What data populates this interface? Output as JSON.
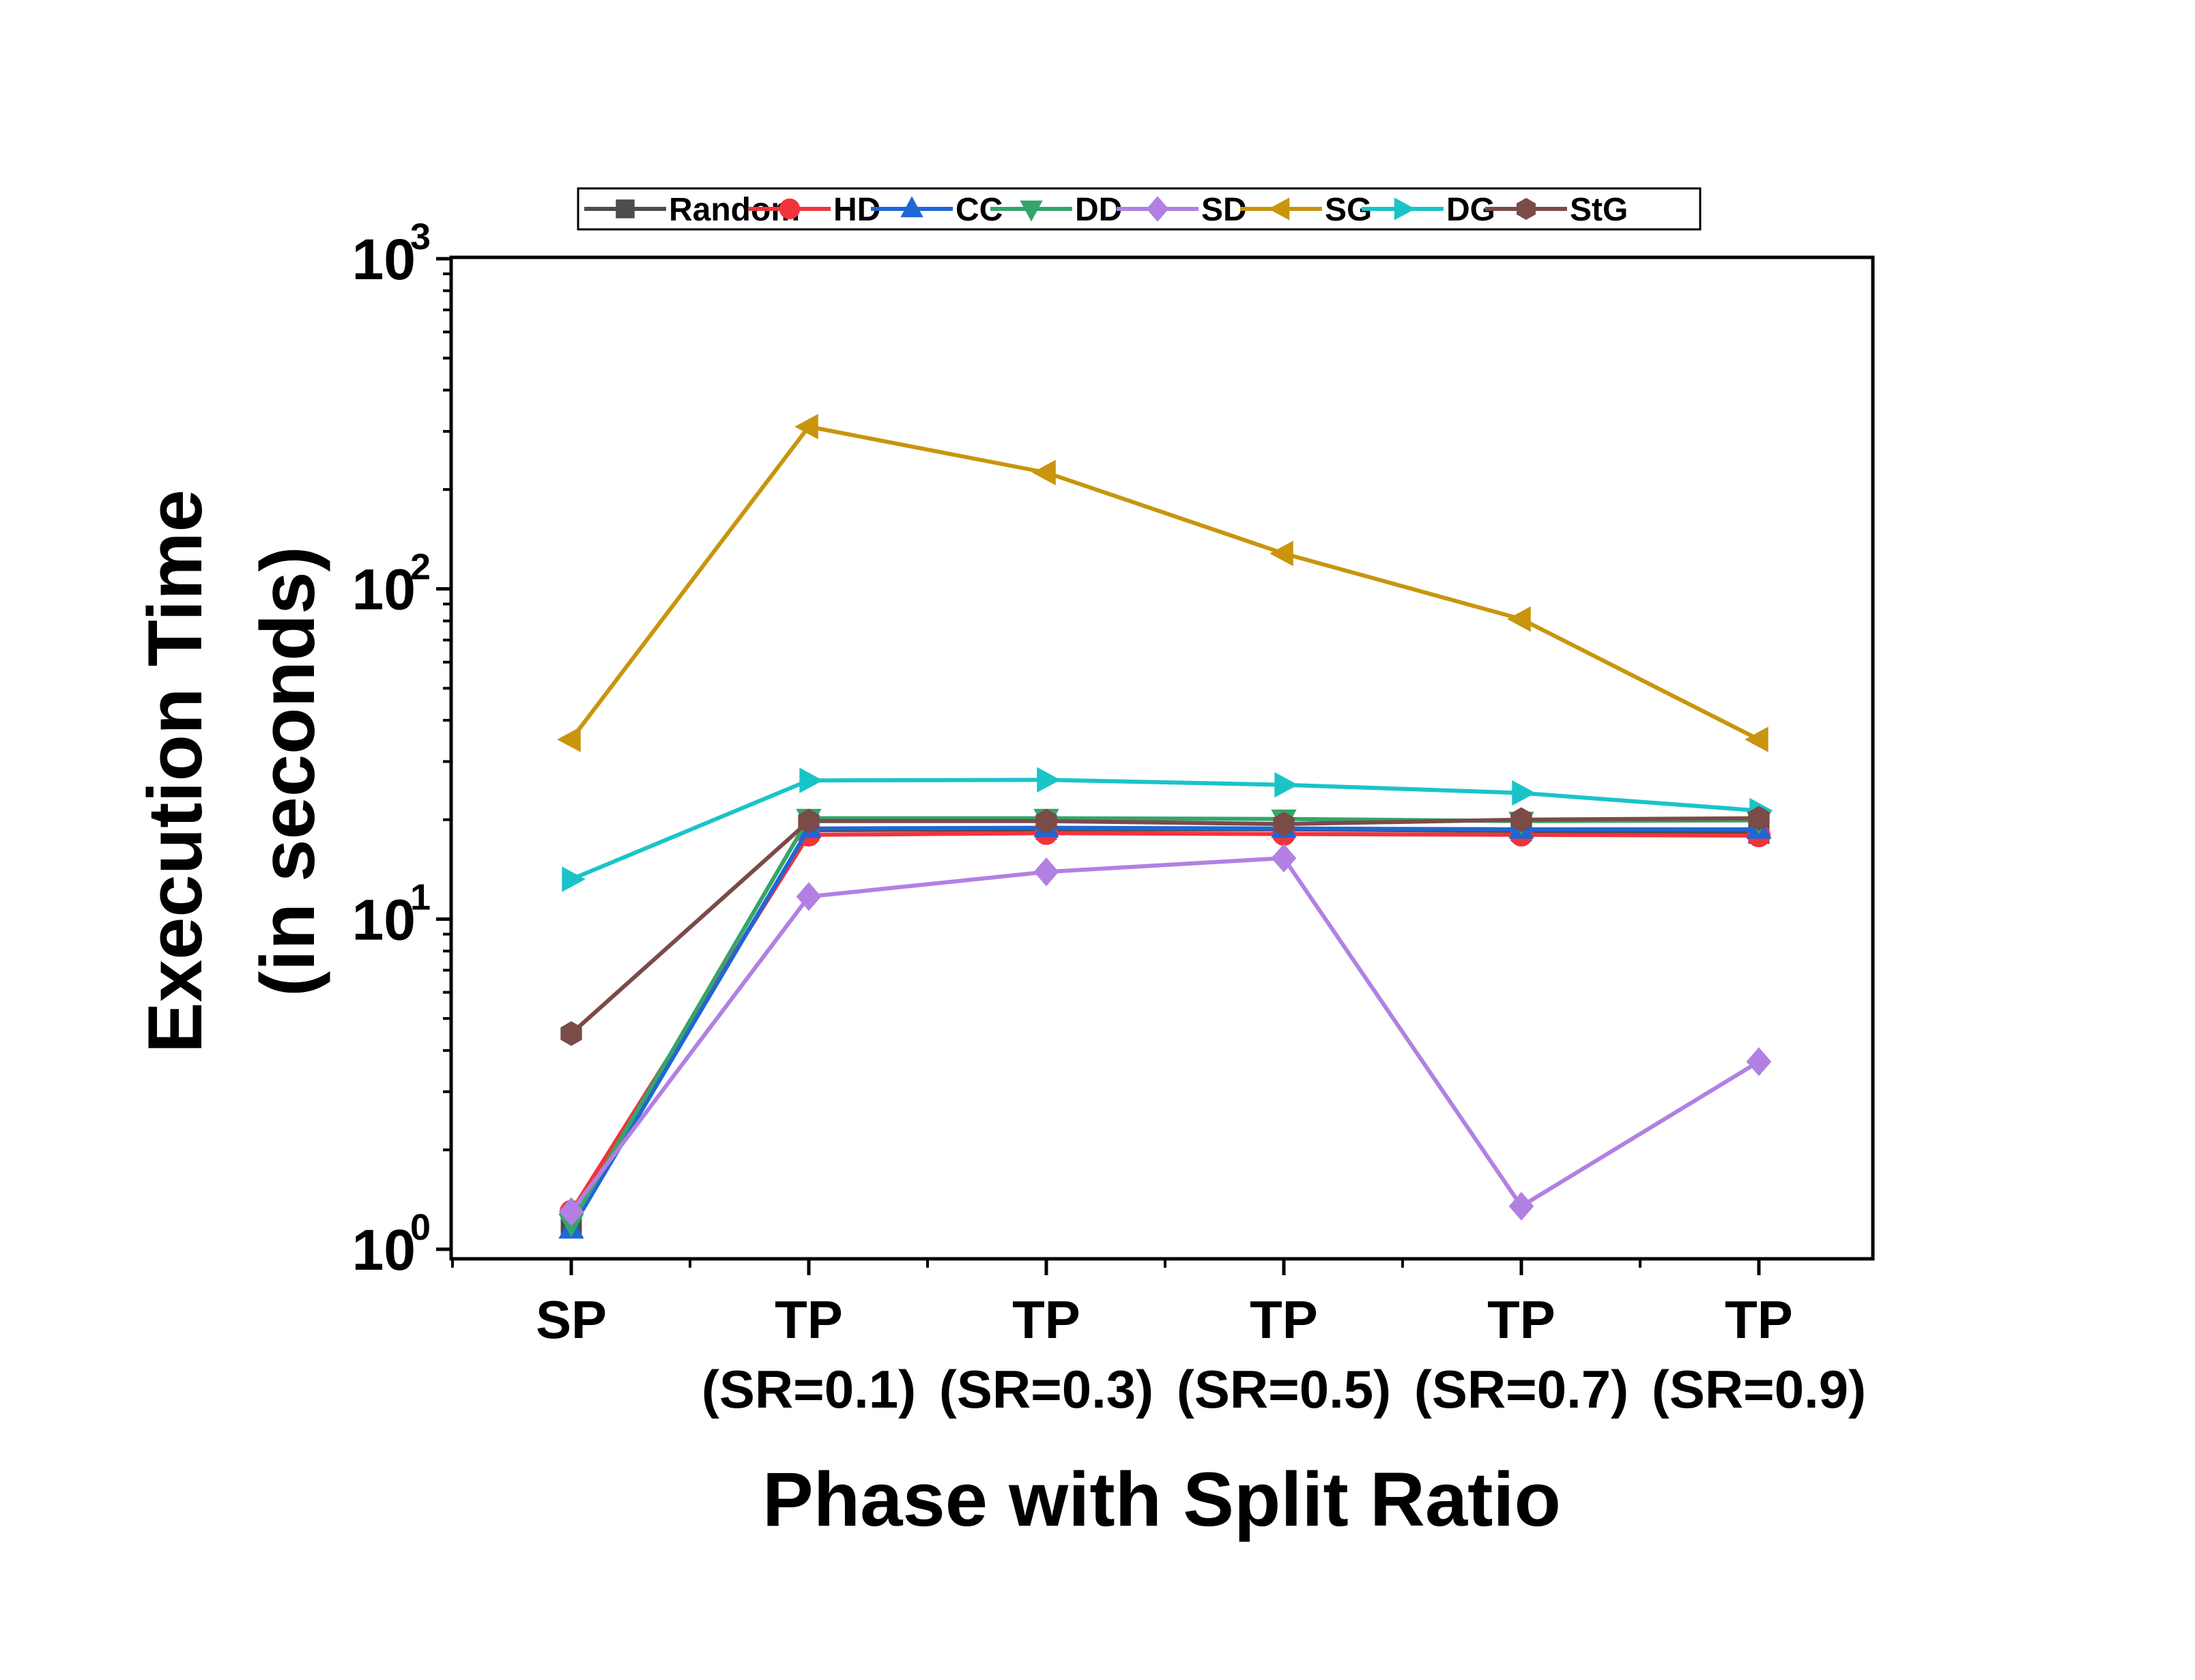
{
  "chart_data": {
    "type": "line",
    "title": "",
    "xlabel": "Phase with Split Ratio",
    "ylabel_lines": [
      "Execution Time",
      "(in seconds)"
    ],
    "yscale": "log",
    "ylim": [
      1,
      1000
    ],
    "ytick_labels": [
      {
        "base": "10",
        "exp": "0"
      },
      {
        "base": "10",
        "exp": "1"
      },
      {
        "base": "10",
        "exp": "2"
      },
      {
        "base": "10",
        "exp": "3"
      }
    ],
    "categories": [
      {
        "line1": "SP",
        "line2": ""
      },
      {
        "line1": "TP",
        "line2": "(SR=0.1)"
      },
      {
        "line1": "TP",
        "line2": "(SR=0.3)"
      },
      {
        "line1": "TP",
        "line2": "(SR=0.5)"
      },
      {
        "line1": "TP",
        "line2": "(SR=0.7)"
      },
      {
        "line1": "TP",
        "line2": "(SR=0.9)"
      }
    ],
    "grid": false,
    "legend_position": "top",
    "series": [
      {
        "name": "Random",
        "color": "#4d4d4d",
        "marker": "square",
        "values": [
          1.2,
          18.6,
          18.7,
          18.7,
          18.5,
          18.2
        ]
      },
      {
        "name": "HD",
        "color": "#f0343c",
        "marker": "circle",
        "values": [
          1.3,
          18.0,
          18.2,
          18.1,
          18.0,
          17.9
        ]
      },
      {
        "name": "CC",
        "color": "#1f66d6",
        "marker": "triangle-up",
        "values": [
          1.15,
          18.8,
          18.9,
          18.8,
          18.7,
          18.7
        ]
      },
      {
        "name": "DD",
        "color": "#35a56b",
        "marker": "triangle-down",
        "values": [
          1.2,
          20.2,
          20.2,
          20.1,
          19.8,
          19.9
        ]
      },
      {
        "name": "SD",
        "color": "#b280e2",
        "marker": "diamond",
        "values": [
          1.3,
          11.7,
          13.9,
          15.3,
          1.35,
          3.7
        ]
      },
      {
        "name": "SG",
        "color": "#c8950d",
        "marker": "triangle-left",
        "values": [
          35,
          310,
          225,
          128,
          81,
          35
        ]
      },
      {
        "name": "DG",
        "color": "#19c4c8",
        "marker": "triangle-right",
        "values": [
          13.2,
          26.3,
          26.4,
          25.5,
          24.1,
          21.3
        ]
      },
      {
        "name": "StG",
        "color": "#7b4b48",
        "marker": "hexagon",
        "values": [
          4.5,
          19.8,
          19.8,
          19.4,
          20.0,
          20.2
        ]
      }
    ]
  }
}
